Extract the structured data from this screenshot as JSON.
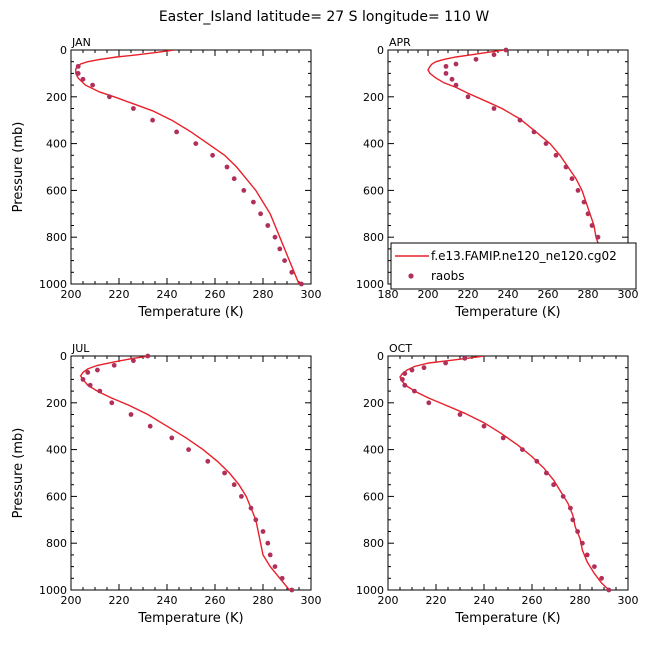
{
  "figure": {
    "title": "Easter_Island   latitude= 27 S longitude= 110 W"
  },
  "colors": {
    "model": "#e8202a",
    "obs": "#b0305a"
  },
  "legend": {
    "panel_index": 1,
    "model_label": "f.e13.FAMIP.ne120_ne120.cg02",
    "obs_label": "raobs"
  },
  "chart_data": [
    {
      "type": "line",
      "title": "JAN",
      "xlabel": "Temperature (K)",
      "ylabel": "Pressure (mb)",
      "xlim": [
        200,
        300
      ],
      "ylim": [
        0,
        1000
      ],
      "y_inverted": true,
      "xticks": [
        200,
        220,
        240,
        260,
        280,
        300
      ],
      "yticks": [
        0,
        200,
        400,
        600,
        800,
        1000
      ],
      "series": [
        {
          "name": "f.e13.FAMIP.ne120_ne120.cg02",
          "kind": "line",
          "points": [
            [
              243,
              0
            ],
            [
              236,
              10
            ],
            [
              228,
              20
            ],
            [
              219,
              30
            ],
            [
              212,
              40
            ],
            [
              207,
              50
            ],
            [
              204,
              60
            ],
            [
              203,
              70
            ],
            [
              202,
              80
            ],
            [
              202,
              100
            ],
            [
              203,
              120
            ],
            [
              206,
              150
            ],
            [
              212,
              180
            ],
            [
              218,
              200
            ],
            [
              226,
              230
            ],
            [
              234,
              260
            ],
            [
              242,
              300
            ],
            [
              250,
              350
            ],
            [
              257,
              400
            ],
            [
              264,
              450
            ],
            [
              269,
              500
            ],
            [
              273,
              550
            ],
            [
              277,
              600
            ],
            [
              280,
              650
            ],
            [
              283,
              700
            ],
            [
              285,
              750
            ],
            [
              287,
              800
            ],
            [
              289,
              850
            ],
            [
              291,
              900
            ],
            [
              293,
              950
            ],
            [
              295,
              1000
            ]
          ]
        },
        {
          "name": "raobs",
          "kind": "scatter",
          "points": [
            [
              203,
              70
            ],
            [
              203,
              100
            ],
            [
              205,
              125
            ],
            [
              209,
              150
            ],
            [
              216,
              200
            ],
            [
              226,
              250
            ],
            [
              234,
              300
            ],
            [
              244,
              350
            ],
            [
              252,
              400
            ],
            [
              259,
              450
            ],
            [
              265,
              500
            ],
            [
              268,
              550
            ],
            [
              272,
              600
            ],
            [
              276,
              650
            ],
            [
              279,
              700
            ],
            [
              282,
              750
            ],
            [
              285,
              800
            ],
            [
              287,
              850
            ],
            [
              289,
              900
            ],
            [
              292,
              950
            ],
            [
              296,
              1000
            ]
          ]
        }
      ]
    },
    {
      "type": "line",
      "title": "APR",
      "xlabel": "Temperature (K)",
      "ylabel": "",
      "xlim": [
        180,
        300
      ],
      "ylim": [
        0,
        1000
      ],
      "y_inverted": true,
      "xticks": [
        180,
        200,
        220,
        240,
        260,
        280,
        300
      ],
      "yticks": [
        0,
        200,
        400,
        600,
        800,
        1000
      ],
      "series": [
        {
          "name": "f.e13.FAMIP.ne120_ne120.cg02",
          "kind": "line",
          "points": [
            [
              238,
              0
            ],
            [
              230,
              10
            ],
            [
              222,
              20
            ],
            [
              214,
              30
            ],
            [
              208,
              40
            ],
            [
              204,
              50
            ],
            [
              202,
              60
            ],
            [
              201,
              70
            ],
            [
              200,
              85
            ],
            [
              201,
              100
            ],
            [
              204,
              120
            ],
            [
              208,
              140
            ],
            [
              214,
              160
            ],
            [
              220,
              185
            ],
            [
              228,
              215
            ],
            [
              237,
              250
            ],
            [
              246,
              295
            ],
            [
              254,
              350
            ],
            [
              261,
              400
            ],
            [
              266,
              450
            ],
            [
              270,
              500
            ],
            [
              274,
              550
            ],
            [
              277,
              600
            ],
            [
              279,
              650
            ],
            [
              281,
              700
            ],
            [
              283,
              750
            ],
            [
              284,
              800
            ],
            [
              286,
              850
            ],
            [
              288,
              900
            ],
            [
              291,
              950
            ],
            [
              295,
              1000
            ]
          ]
        },
        {
          "name": "raobs",
          "kind": "scatter",
          "points": [
            [
              239,
              0
            ],
            [
              233,
              20
            ],
            [
              224,
              40
            ],
            [
              214,
              60
            ],
            [
              209,
              70
            ],
            [
              209,
              100
            ],
            [
              212,
              125
            ],
            [
              214,
              150
            ],
            [
              220,
              200
            ],
            [
              233,
              250
            ],
            [
              246,
              300
            ],
            [
              253,
              350
            ],
            [
              259,
              400
            ],
            [
              264,
              450
            ],
            [
              269,
              500
            ],
            [
              272,
              550
            ],
            [
              275,
              600
            ],
            [
              278,
              650
            ],
            [
              280,
              700
            ],
            [
              282,
              750
            ],
            [
              285,
              800
            ],
            [
              287,
              850
            ],
            [
              289,
              900
            ],
            [
              292,
              950
            ],
            [
              295,
              1000
            ]
          ]
        }
      ]
    },
    {
      "type": "line",
      "title": "JUL",
      "xlabel": "Temperature (K)",
      "ylabel": "Pressure (mb)",
      "xlim": [
        200,
        300
      ],
      "ylim": [
        0,
        1000
      ],
      "y_inverted": true,
      "xticks": [
        200,
        220,
        240,
        260,
        280,
        300
      ],
      "yticks": [
        0,
        200,
        400,
        600,
        800,
        1000
      ],
      "series": [
        {
          "name": "f.e13.FAMIP.ne120_ne120.cg02",
          "kind": "line",
          "points": [
            [
              233,
              0
            ],
            [
              226,
              10
            ],
            [
              218,
              25
            ],
            [
              211,
              40
            ],
            [
              207,
              55
            ],
            [
              205,
              70
            ],
            [
              204,
              85
            ],
            [
              205,
              100
            ],
            [
              207,
              125
            ],
            [
              211,
              150
            ],
            [
              217,
              180
            ],
            [
              224,
              210
            ],
            [
              232,
              250
            ],
            [
              240,
              300
            ],
            [
              248,
              350
            ],
            [
              255,
              400
            ],
            [
              261,
              450
            ],
            [
              266,
              500
            ],
            [
              270,
              550
            ],
            [
              273,
              600
            ],
            [
              275,
              650
            ],
            [
              277,
              700
            ],
            [
              278,
              750
            ],
            [
              279,
              800
            ],
            [
              280,
              850
            ],
            [
              283,
              900
            ],
            [
              287,
              950
            ],
            [
              291,
              1000
            ]
          ]
        },
        {
          "name": "raobs",
          "kind": "scatter",
          "points": [
            [
              232,
              0
            ],
            [
              226,
              20
            ],
            [
              218,
              40
            ],
            [
              211,
              60
            ],
            [
              207,
              70
            ],
            [
              205,
              100
            ],
            [
              208,
              125
            ],
            [
              212,
              150
            ],
            [
              217,
              200
            ],
            [
              225,
              250
            ],
            [
              233,
              300
            ],
            [
              242,
              350
            ],
            [
              249,
              400
            ],
            [
              257,
              450
            ],
            [
              264,
              500
            ],
            [
              268,
              550
            ],
            [
              271,
              600
            ],
            [
              275,
              650
            ],
            [
              277,
              700
            ],
            [
              280,
              750
            ],
            [
              282,
              800
            ],
            [
              283,
              850
            ],
            [
              285,
              900
            ],
            [
              288,
              950
            ],
            [
              292,
              1000
            ]
          ]
        }
      ]
    },
    {
      "type": "line",
      "title": "OCT",
      "xlabel": "Temperature (K)",
      "ylabel": "",
      "xlim": [
        200,
        300
      ],
      "ylim": [
        0,
        1000
      ],
      "y_inverted": true,
      "xticks": [
        200,
        220,
        240,
        260,
        280,
        300
      ],
      "yticks": [
        0,
        200,
        400,
        600,
        800,
        1000
      ],
      "series": [
        {
          "name": "f.e13.FAMIP.ne120_ne120.cg02",
          "kind": "line",
          "points": [
            [
              240,
              0
            ],
            [
              233,
              10
            ],
            [
              225,
              20
            ],
            [
              217,
              30
            ],
            [
              211,
              45
            ],
            [
              208,
              60
            ],
            [
              206,
              75
            ],
            [
              205,
              90
            ],
            [
              206,
              110
            ],
            [
              208,
              130
            ],
            [
              212,
              155
            ],
            [
              217,
              180
            ],
            [
              224,
              210
            ],
            [
              232,
              245
            ],
            [
              240,
              285
            ],
            [
              247,
              330
            ],
            [
              254,
              380
            ],
            [
              260,
              430
            ],
            [
              265,
              480
            ],
            [
              269,
              530
            ],
            [
              272,
              580
            ],
            [
              275,
              630
            ],
            [
              277,
              680
            ],
            [
              278,
              730
            ],
            [
              280,
              780
            ],
            [
              281,
              830
            ],
            [
              283,
              880
            ],
            [
              286,
              930
            ],
            [
              289,
              970
            ],
            [
              292,
              1000
            ]
          ]
        },
        {
          "name": "raobs",
          "kind": "scatter",
          "points": [
            [
              232,
              10
            ],
            [
              224,
              30
            ],
            [
              215,
              50
            ],
            [
              210,
              60
            ],
            [
              207,
              75
            ],
            [
              206,
              100
            ],
            [
              207,
              125
            ],
            [
              211,
              150
            ],
            [
              217,
              200
            ],
            [
              230,
              250
            ],
            [
              240,
              300
            ],
            [
              248,
              350
            ],
            [
              256,
              400
            ],
            [
              262,
              450
            ],
            [
              266,
              500
            ],
            [
              269,
              550
            ],
            [
              273,
              600
            ],
            [
              276,
              650
            ],
            [
              277,
              700
            ],
            [
              279,
              750
            ],
            [
              281,
              800
            ],
            [
              283,
              850
            ],
            [
              286,
              900
            ],
            [
              289,
              950
            ],
            [
              292,
              1000
            ]
          ]
        }
      ]
    }
  ]
}
